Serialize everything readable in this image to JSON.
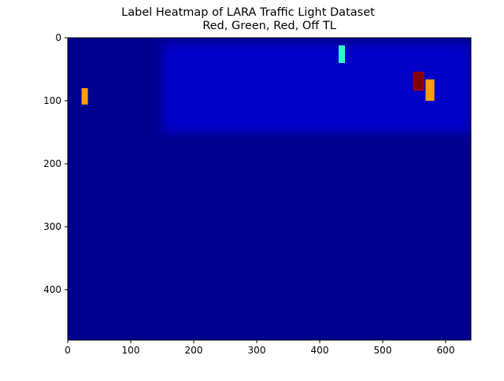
{
  "chart_data": {
    "type": "heatmap",
    "title": "Label Heatmap of LARA Traffic Light Dataset",
    "subtitle": "Red, Green, Red, Off TL",
    "xlabel": "",
    "ylabel": "",
    "xlim": [
      0,
      640
    ],
    "ylim": [
      480,
      0
    ],
    "y_inverted": true,
    "xticks": [
      0,
      100,
      200,
      300,
      400,
      500,
      600
    ],
    "yticks": [
      0,
      100,
      200,
      300,
      400
    ],
    "colormap": "jet",
    "background_color": "#00008f",
    "grid": false,
    "legend": "none",
    "hotspots": [
      {
        "x": [
          22,
          32
        ],
        "y": [
          80,
          106
        ],
        "level": 0.72
      },
      {
        "x": [
          430,
          440
        ],
        "y": [
          12,
          40
        ],
        "level": 0.42
      },
      {
        "x": [
          548,
          566
        ],
        "y": [
          54,
          84
        ],
        "level": 0.97
      },
      {
        "x": [
          568,
          582
        ],
        "y": [
          66,
          100
        ],
        "level": 0.72
      }
    ],
    "diffuse_regions": [
      {
        "x": [
          150,
          640
        ],
        "y": [
          10,
          150
        ],
        "level": 0.12
      }
    ]
  }
}
